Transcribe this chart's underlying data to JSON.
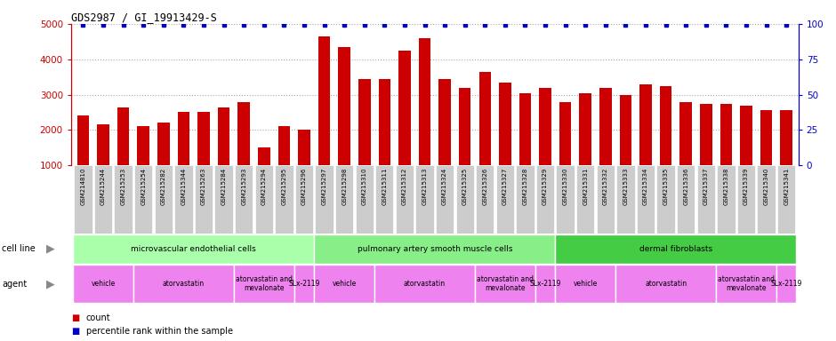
{
  "title": "GDS2987 / GI_19913429-S",
  "samples": [
    "GSM214810",
    "GSM215244",
    "GSM215253",
    "GSM215254",
    "GSM215282",
    "GSM215344",
    "GSM215263",
    "GSM215284",
    "GSM215293",
    "GSM215294",
    "GSM215295",
    "GSM215296",
    "GSM215297",
    "GSM215298",
    "GSM215310",
    "GSM215311",
    "GSM215312",
    "GSM215313",
    "GSM215324",
    "GSM215325",
    "GSM215326",
    "GSM215327",
    "GSM215328",
    "GSM215329",
    "GSM215330",
    "GSM215331",
    "GSM215332",
    "GSM215333",
    "GSM215334",
    "GSM215335",
    "GSM215336",
    "GSM215337",
    "GSM215338",
    "GSM215339",
    "GSM215340",
    "GSM215341"
  ],
  "bar_values": [
    2400,
    2150,
    2650,
    2100,
    2200,
    2500,
    2500,
    2650,
    2800,
    1520,
    2100,
    2000,
    4650,
    4350,
    3450,
    3450,
    4250,
    4600,
    3450,
    3200,
    3650,
    3350,
    3050,
    3200,
    2800,
    3050,
    3200,
    3000,
    3300,
    3250,
    2800,
    2750,
    2750,
    2700,
    2550,
    2550
  ],
  "percentile_values": [
    99,
    99,
    99,
    99,
    99,
    99,
    99,
    99,
    99,
    99,
    99,
    99,
    99,
    99,
    99,
    99,
    99,
    99,
    99,
    99,
    99,
    99,
    99,
    99,
    99,
    99,
    99,
    99,
    99,
    99,
    99,
    99,
    99,
    99,
    99,
    99
  ],
  "bar_color": "#cc0000",
  "percentile_color": "#0000cc",
  "ylim_left": [
    1000,
    5000
  ],
  "ylim_right": [
    0,
    100
  ],
  "yticks_left": [
    1000,
    2000,
    3000,
    4000,
    5000
  ],
  "yticks_right": [
    0,
    25,
    50,
    75,
    100
  ],
  "cell_line_groups": [
    {
      "label": "microvascular endothelial cells",
      "start": 0,
      "end": 11,
      "color": "#aaffaa"
    },
    {
      "label": "pulmonary artery smooth muscle cells",
      "start": 12,
      "end": 23,
      "color": "#88ee88"
    },
    {
      "label": "dermal fibroblasts",
      "start": 24,
      "end": 35,
      "color": "#44cc44"
    }
  ],
  "agent_groups": [
    {
      "label": "vehicle",
      "start": 0,
      "end": 2,
      "color": "#ee82ee"
    },
    {
      "label": "atorvastatin",
      "start": 3,
      "end": 7,
      "color": "#ee82ee"
    },
    {
      "label": "atorvastatin and\nmevalonate",
      "start": 8,
      "end": 10,
      "color": "#ee82ee"
    },
    {
      "label": "SLx-2119",
      "start": 11,
      "end": 11,
      "color": "#ee82ee"
    },
    {
      "label": "vehicle",
      "start": 12,
      "end": 14,
      "color": "#ee82ee"
    },
    {
      "label": "atorvastatin",
      "start": 15,
      "end": 19,
      "color": "#ee82ee"
    },
    {
      "label": "atorvastatin and\nmevalonate",
      "start": 20,
      "end": 22,
      "color": "#ee82ee"
    },
    {
      "label": "SLx-2119",
      "start": 23,
      "end": 23,
      "color": "#ee82ee"
    },
    {
      "label": "vehicle",
      "start": 24,
      "end": 26,
      "color": "#ee82ee"
    },
    {
      "label": "atorvastatin",
      "start": 27,
      "end": 31,
      "color": "#ee82ee"
    },
    {
      "label": "atorvastatin and\nmevalonate",
      "start": 32,
      "end": 34,
      "color": "#ee82ee"
    },
    {
      "label": "SLx-2119",
      "start": 35,
      "end": 35,
      "color": "#ee82ee"
    }
  ],
  "legend_count_color": "#cc0000",
  "legend_percentile_color": "#0000cc",
  "bg_color": "#ffffff",
  "grid_color": "#aaaaaa",
  "xtick_box_color": "#cccccc"
}
